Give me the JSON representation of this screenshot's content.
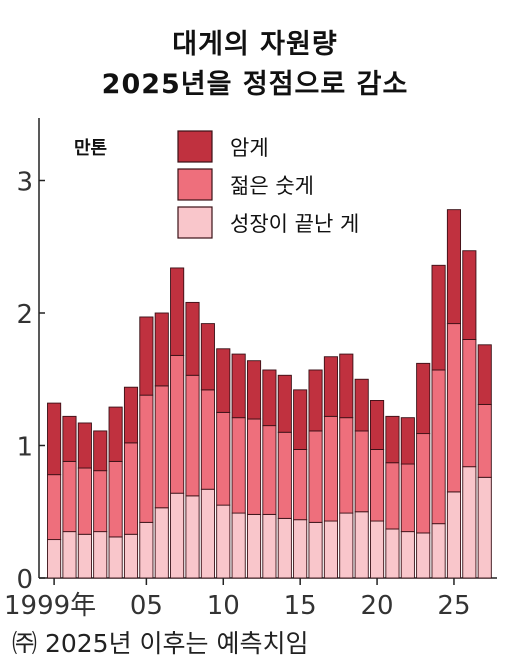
{
  "title_lines": [
    "대게의 자원량",
    "2025년을 정점으로 감소"
  ],
  "footnote": "㈜ 2025년 이후는 예측치임",
  "chart_data": {
    "type": "bar",
    "stacked": true,
    "unit_label": "만톤",
    "ylim": [
      0,
      3.5
    ],
    "yticks": [
      0,
      1,
      2,
      3
    ],
    "years": [
      1999,
      2000,
      2001,
      2002,
      2003,
      2004,
      2005,
      2006,
      2007,
      2008,
      2009,
      2010,
      2011,
      2012,
      2013,
      2014,
      2015,
      2016,
      2017,
      2018,
      2019,
      2020,
      2021,
      2022,
      2023,
      2024,
      2025,
      2026,
      2027
    ],
    "x_tick_labels": [
      {
        "year": 1999,
        "label": "1999年"
      },
      {
        "year": 2005,
        "label": "05"
      },
      {
        "year": 2010,
        "label": "10"
      },
      {
        "year": 2015,
        "label": "15"
      },
      {
        "year": 2020,
        "label": "20"
      },
      {
        "year": 2025,
        "label": "25"
      }
    ],
    "legend_position": "top-left",
    "series": [
      {
        "name": "성장이 끝난 게",
        "color": "#f9c6cb",
        "values": [
          0.29,
          0.35,
          0.33,
          0.35,
          0.31,
          0.33,
          0.42,
          0.53,
          0.64,
          0.62,
          0.67,
          0.55,
          0.49,
          0.48,
          0.48,
          0.45,
          0.44,
          0.42,
          0.43,
          0.49,
          0.5,
          0.43,
          0.37,
          0.35,
          0.34,
          0.41,
          0.65,
          0.84,
          0.76
        ]
      },
      {
        "name": "젊은 숫게",
        "color": "#ee6f7c",
        "values": [
          0.49,
          0.53,
          0.5,
          0.46,
          0.57,
          0.69,
          0.96,
          0.92,
          1.04,
          0.91,
          0.75,
          0.7,
          0.72,
          0.72,
          0.67,
          0.65,
          0.53,
          0.69,
          0.79,
          0.72,
          0.61,
          0.54,
          0.5,
          0.51,
          0.75,
          1.16,
          1.27,
          0.96,
          0.55
        ]
      },
      {
        "name": "암게",
        "color": "#c0313f",
        "values": [
          0.54,
          0.34,
          0.34,
          0.3,
          0.41,
          0.42,
          0.59,
          0.55,
          0.66,
          0.55,
          0.5,
          0.48,
          0.48,
          0.44,
          0.42,
          0.43,
          0.45,
          0.46,
          0.45,
          0.48,
          0.39,
          0.37,
          0.35,
          0.35,
          0.53,
          0.79,
          0.86,
          0.67,
          0.45
        ]
      }
    ]
  }
}
